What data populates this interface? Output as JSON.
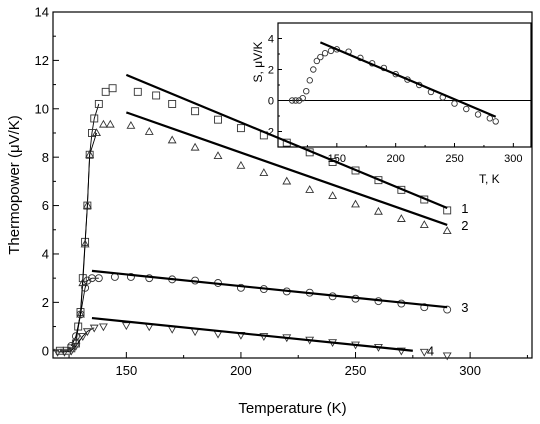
{
  "chart_data": [
    {
      "type": "scatter",
      "title": "",
      "xlabel": "Temperature (K)",
      "ylabel": "Thermopower (μV/K)",
      "xlim": [
        118,
        327
      ],
      "ylim": [
        -0.3,
        14
      ],
      "xticks": [
        150,
        200,
        250,
        300
      ],
      "yticks": [
        0,
        2,
        4,
        6,
        8,
        10,
        12,
        14
      ],
      "grid": false,
      "legend": "none",
      "series": [
        {
          "name": "1",
          "marker": "square",
          "points": [
            [
              121,
              0
            ],
            [
              124,
              0
            ],
            [
              126,
              0.1
            ],
            [
              128,
              0.3
            ],
            [
              129,
              1.0
            ],
            [
              130,
              1.6
            ],
            [
              131,
              3.0
            ],
            [
              132,
              4.5
            ],
            [
              133,
              6.0
            ],
            [
              134,
              8.1
            ],
            [
              135,
              9.0
            ],
            [
              136,
              9.6
            ],
            [
              138,
              10.2
            ],
            [
              141,
              10.7
            ],
            [
              144,
              10.85
            ],
            [
              155,
              10.7
            ],
            [
              163,
              10.55
            ],
            [
              170,
              10.2
            ],
            [
              180,
              9.9
            ],
            [
              190,
              9.55
            ],
            [
              200,
              9.2
            ],
            [
              210,
              8.9
            ],
            [
              220,
              8.6
            ],
            [
              230,
              8.2
            ],
            [
              240,
              7.8
            ],
            [
              250,
              7.45
            ],
            [
              260,
              7.05
            ],
            [
              270,
              6.65
            ],
            [
              280,
              6.25
            ],
            [
              290,
              5.8
            ]
          ],
          "fit": [
            [
              150,
              11.4
            ],
            [
              290,
              5.9
            ]
          ]
        },
        {
          "name": "2",
          "marker": "triangle-up",
          "points": [
            [
              128,
              0.4
            ],
            [
              130,
              1.5
            ],
            [
              131,
              2.8
            ],
            [
              132,
              4.4
            ],
            [
              133,
              6.0
            ],
            [
              134,
              8.1
            ],
            [
              137,
              9.0
            ],
            [
              140,
              9.35
            ],
            [
              143,
              9.35
            ],
            [
              152,
              9.3
            ],
            [
              160,
              9.05
            ],
            [
              170,
              8.7
            ],
            [
              180,
              8.4
            ],
            [
              190,
              8.05
            ],
            [
              200,
              7.65
            ],
            [
              210,
              7.35
            ],
            [
              220,
              7.0
            ],
            [
              230,
              6.65
            ],
            [
              240,
              6.4
            ],
            [
              250,
              6.05
            ],
            [
              260,
              5.75
            ],
            [
              270,
              5.45
            ],
            [
              280,
              5.2
            ],
            [
              290,
              4.95
            ]
          ],
          "fit": [
            [
              150,
              9.85
            ],
            [
              290,
              5.2
            ]
          ]
        },
        {
          "name": "3",
          "marker": "circle",
          "points": [
            [
              126,
              0.2
            ],
            [
              128,
              0.6
            ],
            [
              130,
              1.5
            ],
            [
              132,
              2.6
            ],
            [
              133,
              2.9
            ],
            [
              135,
              3.0
            ],
            [
              138,
              3.0
            ],
            [
              145,
              3.05
            ],
            [
              152,
              3.05
            ],
            [
              160,
              3.0
            ],
            [
              170,
              2.95
            ],
            [
              180,
              2.9
            ],
            [
              190,
              2.8
            ],
            [
              200,
              2.6
            ],
            [
              210,
              2.55
            ],
            [
              220,
              2.45
            ],
            [
              230,
              2.4
            ],
            [
              240,
              2.25
            ],
            [
              250,
              2.15
            ],
            [
              260,
              2.05
            ],
            [
              270,
              1.95
            ],
            [
              280,
              1.8
            ],
            [
              290,
              1.7
            ]
          ],
          "fit": [
            [
              135,
              3.3
            ],
            [
              290,
              1.8
            ]
          ]
        },
        {
          "name": "4",
          "marker": "triangle-down",
          "points": [
            [
              120,
              -0.05
            ],
            [
              123,
              -0.05
            ],
            [
              126,
              0
            ],
            [
              128,
              0.2
            ],
            [
              131,
              0.6
            ],
            [
              133,
              0.8
            ],
            [
              136,
              0.95
            ],
            [
              140,
              1.0
            ],
            [
              150,
              1.05
            ],
            [
              160,
              1.0
            ],
            [
              170,
              0.9
            ],
            [
              180,
              0.8
            ],
            [
              190,
              0.7
            ],
            [
              200,
              0.65
            ],
            [
              210,
              0.6
            ],
            [
              220,
              0.55
            ],
            [
              230,
              0.45
            ],
            [
              240,
              0.35
            ],
            [
              250,
              0.25
            ],
            [
              260,
              0.15
            ],
            [
              270,
              0
            ],
            [
              280,
              -0.05
            ],
            [
              290,
              -0.2
            ]
          ],
          "fit": [
            [
              135,
              1.35
            ],
            [
              275,
              0.0
            ]
          ]
        }
      ],
      "annotations": [
        "1",
        "2",
        "3",
        "4"
      ]
    },
    {
      "type": "scatter",
      "title": "",
      "xlabel": "T, K",
      "ylabel": "S, μV/K",
      "xlim": [
        100,
        315
      ],
      "ylim": [
        -3,
        5
      ],
      "xticks": [
        150,
        200,
        250,
        300
      ],
      "yticks": [
        -2,
        0,
        2,
        4
      ],
      "grid": false,
      "series": [
        {
          "name": "",
          "marker": "circle",
          "points": [
            [
              112,
              0
            ],
            [
              115,
              0
            ],
            [
              118,
              0
            ],
            [
              121,
              0.15
            ],
            [
              124,
              0.6
            ],
            [
              127,
              1.3
            ],
            [
              130,
              2.0
            ],
            [
              133,
              2.55
            ],
            [
              136,
              2.8
            ],
            [
              140,
              3.05
            ],
            [
              145,
              3.2
            ],
            [
              150,
              3.3
            ],
            [
              160,
              3.15
            ],
            [
              170,
              2.75
            ],
            [
              180,
              2.4
            ],
            [
              190,
              2.1
            ],
            [
              200,
              1.7
            ],
            [
              210,
              1.35
            ],
            [
              220,
              1.0
            ],
            [
              230,
              0.55
            ],
            [
              240,
              0.2
            ],
            [
              250,
              -0.2
            ],
            [
              260,
              -0.55
            ],
            [
              270,
              -0.9
            ],
            [
              280,
              -1.15
            ],
            [
              285,
              -1.35
            ]
          ],
          "fit": [
            [
              136,
              3.75
            ],
            [
              285,
              -1.05
            ]
          ]
        }
      ],
      "reference_line_y": 0
    }
  ]
}
